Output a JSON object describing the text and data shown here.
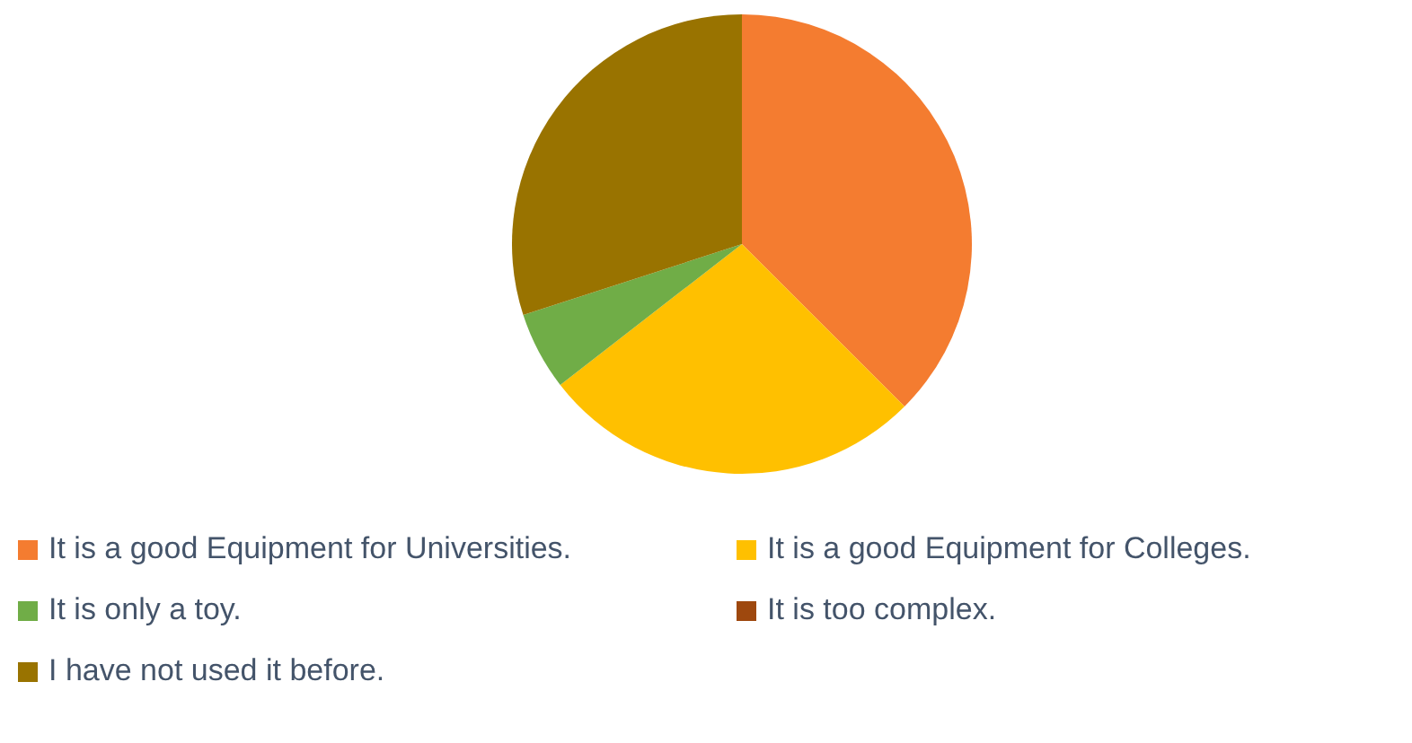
{
  "chart_data": {
    "type": "pie",
    "categories": [
      "It is a good Equipment for Universities.",
      "It is a good Equipment for Colleges.",
      "It is only a toy.",
      "It is too complex.",
      "I have not used it before."
    ],
    "values": [
      37.5,
      27,
      5.5,
      0,
      30
    ],
    "colors": [
      "#f47c30",
      "#ffc000",
      "#70ad47",
      "#9e480e",
      "#997300"
    ],
    "legend": "bottom"
  }
}
